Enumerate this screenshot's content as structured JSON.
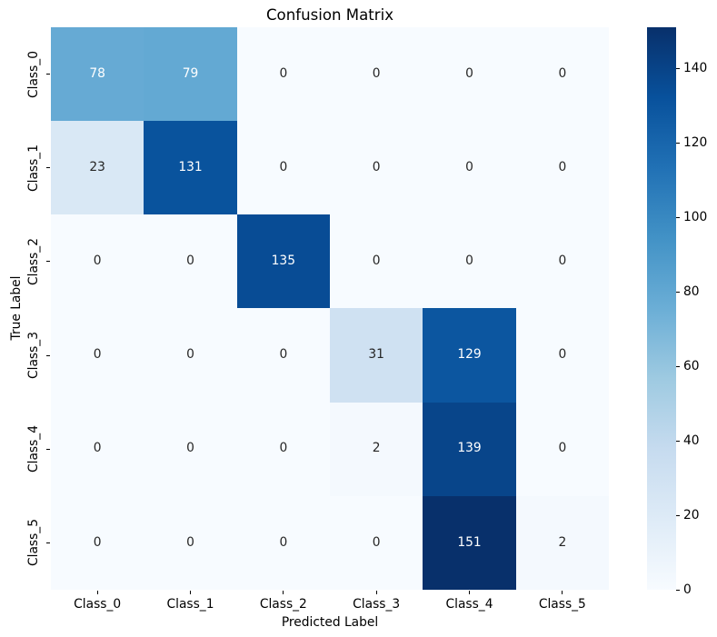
{
  "figure": {
    "background": "#ffffff",
    "text_color": "#000000"
  },
  "chart_data": {
    "type": "heatmap",
    "title": "Confusion Matrix",
    "xlabel": "Predicted Label",
    "ylabel": "True Label",
    "x_categories": [
      "Class_0",
      "Class_1",
      "Class_2",
      "Class_3",
      "Class_4",
      "Class_5"
    ],
    "y_categories": [
      "Class_0",
      "Class_1",
      "Class_2",
      "Class_3",
      "Class_4",
      "Class_5"
    ],
    "matrix": [
      [
        78,
        79,
        0,
        0,
        0,
        0
      ],
      [
        23,
        131,
        0,
        0,
        0,
        0
      ],
      [
        0,
        0,
        135,
        0,
        0,
        0
      ],
      [
        0,
        0,
        0,
        31,
        129,
        0
      ],
      [
        0,
        0,
        0,
        2,
        139,
        0
      ],
      [
        0,
        0,
        0,
        0,
        151,
        2
      ]
    ],
    "vmin": 0,
    "vmax": 151,
    "annotations_shown": true,
    "grid": false,
    "colormap": {
      "name": "Blues",
      "positions": [
        0,
        0.125,
        0.25,
        0.375,
        0.5,
        0.625,
        0.75,
        0.875,
        1.0
      ],
      "colors": [
        "#f7fbff",
        "#deebf7",
        "#c6dbef",
        "#9ecae1",
        "#6baed6",
        "#4292c6",
        "#2171b5",
        "#08519c",
        "#08306b"
      ]
    },
    "annotation_colors": {
      "light": "#ffffff",
      "dark": "#262626"
    },
    "colorbar": {
      "position": "right",
      "ticks": [
        0,
        20,
        40,
        60,
        80,
        100,
        120,
        140
      ]
    }
  }
}
